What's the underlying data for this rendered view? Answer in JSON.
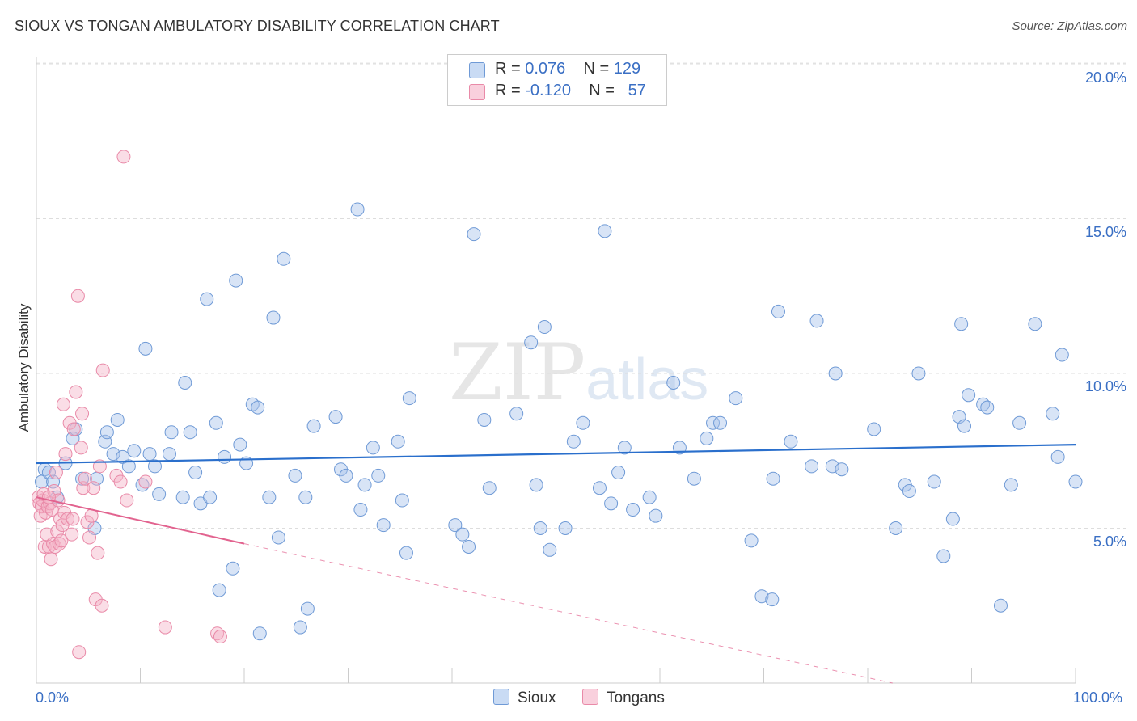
{
  "title": "SIOUX VS TONGAN AMBULATORY DISABILITY CORRELATION CHART",
  "source": "Source: ZipAtlas.com",
  "watermark": {
    "zip": "ZIP",
    "atlas": "atlas"
  },
  "legend_top": {
    "rows": [
      {
        "r_label": "R = ",
        "r_value": "0.076",
        "n_label": "N = ",
        "n_value": "129",
        "color": "#a9c4ec"
      },
      {
        "r_label": "R = ",
        "r_value": "-0.120",
        "n_label": "N = ",
        "n_value": "57",
        "color": "#f4b4c8"
      }
    ]
  },
  "legend_bottom": {
    "sioux": "Sioux",
    "tongans": "Tongans"
  },
  "axes": {
    "ylabel": "Ambulatory Disability",
    "x_min_label": "0.0%",
    "x_max_label": "100.0%",
    "y_ticks": [
      "5.0%",
      "10.0%",
      "15.0%",
      "20.0%"
    ]
  },
  "colors": {
    "sioux_fill": "#a9c4ec",
    "sioux_stroke": "#6f9ad6",
    "sioux_line": "#2a6fcc",
    "tongan_fill": "#f4b4c8",
    "tongan_stroke": "#e98aa8",
    "tongan_line": "#e2638f"
  },
  "chart_data": {
    "type": "scatter",
    "xlabel": "",
    "ylabel": "Ambulatory Disability",
    "xlim": [
      0,
      100
    ],
    "ylim": [
      0,
      20.7
    ],
    "grid": true,
    "series": [
      {
        "name": "Sioux",
        "trend": {
          "x0": 0,
          "y0": 7.1,
          "x1": 100,
          "y1": 7.7
        },
        "points": [
          [
            0.5,
            6.5
          ],
          [
            0.8,
            6.9
          ],
          [
            1.2,
            6.8
          ],
          [
            1.6,
            6.5
          ],
          [
            2.0,
            6.0
          ],
          [
            2.8,
            7.1
          ],
          [
            3.5,
            7.9
          ],
          [
            3.8,
            8.2
          ],
          [
            4.4,
            6.6
          ],
          [
            5.6,
            5.0
          ],
          [
            5.8,
            6.6
          ],
          [
            6.6,
            7.8
          ],
          [
            6.8,
            8.1
          ],
          [
            7.4,
            7.4
          ],
          [
            7.8,
            8.5
          ],
          [
            8.3,
            7.3
          ],
          [
            8.9,
            7.0
          ],
          [
            9.4,
            7.5
          ],
          [
            10.2,
            6.4
          ],
          [
            10.5,
            10.8
          ],
          [
            10.9,
            7.4
          ],
          [
            11.4,
            7.0
          ],
          [
            11.8,
            6.1
          ],
          [
            12.8,
            7.4
          ],
          [
            13.0,
            8.1
          ],
          [
            14.1,
            6.0
          ],
          [
            14.3,
            9.7
          ],
          [
            14.8,
            8.1
          ],
          [
            15.3,
            6.8
          ],
          [
            15.8,
            5.8
          ],
          [
            16.4,
            12.4
          ],
          [
            16.7,
            6.0
          ],
          [
            17.3,
            8.4
          ],
          [
            17.6,
            3.0
          ],
          [
            18.1,
            7.3
          ],
          [
            18.9,
            3.7
          ],
          [
            19.2,
            13.0
          ],
          [
            19.6,
            7.7
          ],
          [
            20.2,
            7.1
          ],
          [
            20.8,
            9.0
          ],
          [
            21.3,
            8.9
          ],
          [
            21.5,
            1.6
          ],
          [
            22.4,
            6.0
          ],
          [
            22.8,
            11.8
          ],
          [
            23.3,
            4.7
          ],
          [
            23.8,
            13.7
          ],
          [
            24.9,
            6.7
          ],
          [
            25.4,
            1.8
          ],
          [
            25.9,
            6.0
          ],
          [
            26.1,
            2.4
          ],
          [
            26.7,
            8.3
          ],
          [
            28.8,
            8.6
          ],
          [
            29.3,
            6.9
          ],
          [
            29.8,
            6.7
          ],
          [
            30.9,
            15.3
          ],
          [
            31.2,
            5.6
          ],
          [
            31.6,
            6.4
          ],
          [
            32.4,
            7.6
          ],
          [
            32.9,
            6.7
          ],
          [
            33.4,
            5.1
          ],
          [
            34.8,
            7.8
          ],
          [
            35.2,
            5.9
          ],
          [
            35.6,
            4.2
          ],
          [
            35.9,
            9.2
          ],
          [
            40.3,
            5.1
          ],
          [
            41.0,
            4.8
          ],
          [
            41.6,
            4.4
          ],
          [
            42.1,
            14.5
          ],
          [
            43.1,
            8.5
          ],
          [
            43.6,
            6.3
          ],
          [
            46.2,
            8.7
          ],
          [
            47.6,
            11.0
          ],
          [
            48.1,
            6.4
          ],
          [
            48.5,
            5.0
          ],
          [
            48.9,
            11.5
          ],
          [
            49.4,
            4.3
          ],
          [
            50.9,
            5.0
          ],
          [
            51.7,
            7.8
          ],
          [
            52.6,
            8.4
          ],
          [
            54.2,
            6.3
          ],
          [
            54.7,
            14.6
          ],
          [
            55.3,
            5.8
          ],
          [
            56.0,
            6.8
          ],
          [
            56.6,
            7.6
          ],
          [
            57.4,
            5.6
          ],
          [
            59.0,
            6.0
          ],
          [
            59.6,
            5.4
          ],
          [
            61.3,
            9.7
          ],
          [
            61.9,
            7.6
          ],
          [
            63.3,
            6.6
          ],
          [
            64.5,
            7.9
          ],
          [
            65.1,
            8.4
          ],
          [
            65.8,
            8.4
          ],
          [
            67.3,
            9.2
          ],
          [
            68.8,
            4.6
          ],
          [
            69.8,
            2.8
          ],
          [
            70.8,
            2.7
          ],
          [
            70.9,
            6.6
          ],
          [
            71.4,
            12.0
          ],
          [
            72.6,
            7.8
          ],
          [
            74.6,
            7.0
          ],
          [
            75.1,
            11.7
          ],
          [
            76.6,
            7.0
          ],
          [
            76.9,
            10.0
          ],
          [
            77.5,
            6.9
          ],
          [
            80.6,
            8.2
          ],
          [
            82.7,
            5.0
          ],
          [
            83.6,
            6.4
          ],
          [
            84.0,
            6.2
          ],
          [
            84.9,
            10.0
          ],
          [
            86.4,
            6.5
          ],
          [
            87.3,
            4.1
          ],
          [
            88.2,
            5.3
          ],
          [
            88.8,
            8.6
          ],
          [
            89.0,
            11.6
          ],
          [
            89.3,
            8.3
          ],
          [
            89.7,
            9.3
          ],
          [
            91.1,
            9.0
          ],
          [
            91.5,
            8.9
          ],
          [
            92.8,
            2.5
          ],
          [
            93.8,
            6.4
          ],
          [
            94.6,
            8.4
          ],
          [
            96.1,
            11.6
          ],
          [
            97.8,
            8.7
          ],
          [
            98.3,
            7.3
          ],
          [
            98.7,
            10.6
          ],
          [
            100.0,
            6.5
          ]
        ]
      },
      {
        "name": "Tongans",
        "trend": {
          "x0": 0,
          "y0": 6.0,
          "x1": 20,
          "y1": 4.5,
          "dashed_to": {
            "x": 100,
            "y": 0
          }
        },
        "points": [
          [
            0.2,
            6.0
          ],
          [
            0.3,
            5.8
          ],
          [
            0.4,
            5.4
          ],
          [
            0.5,
            5.7
          ],
          [
            0.6,
            5.9
          ],
          [
            0.7,
            6.1
          ],
          [
            0.8,
            4.4
          ],
          [
            0.9,
            5.5
          ],
          [
            1.0,
            4.8
          ],
          [
            1.1,
            5.7
          ],
          [
            1.2,
            4.4
          ],
          [
            1.3,
            5.8
          ],
          [
            1.4,
            4.0
          ],
          [
            1.5,
            5.6
          ],
          [
            1.6,
            4.5
          ],
          [
            1.7,
            6.2
          ],
          [
            1.8,
            4.4
          ],
          [
            1.9,
            6.8
          ],
          [
            2.0,
            4.9
          ],
          [
            2.1,
            5.9
          ],
          [
            2.2,
            4.5
          ],
          [
            2.3,
            5.3
          ],
          [
            2.4,
            4.6
          ],
          [
            2.5,
            5.1
          ],
          [
            2.6,
            9.0
          ],
          [
            2.7,
            5.5
          ],
          [
            2.8,
            7.4
          ],
          [
            3.0,
            5.3
          ],
          [
            3.2,
            8.4
          ],
          [
            3.4,
            4.8
          ],
          [
            3.5,
            5.3
          ],
          [
            3.6,
            8.2
          ],
          [
            3.8,
            9.4
          ],
          [
            4.0,
            12.5
          ],
          [
            4.1,
            1.0
          ],
          [
            4.3,
            7.6
          ],
          [
            4.4,
            8.7
          ],
          [
            4.5,
            6.3
          ],
          [
            4.7,
            6.6
          ],
          [
            4.9,
            5.2
          ],
          [
            5.1,
            4.7
          ],
          [
            5.3,
            5.4
          ],
          [
            5.5,
            6.3
          ],
          [
            5.7,
            2.7
          ],
          [
            5.9,
            4.2
          ],
          [
            6.1,
            7.0
          ],
          [
            6.3,
            2.5
          ],
          [
            6.4,
            10.1
          ],
          [
            7.7,
            6.7
          ],
          [
            8.1,
            6.5
          ],
          [
            8.4,
            17.0
          ],
          [
            8.7,
            5.9
          ],
          [
            10.5,
            6.5
          ],
          [
            12.4,
            1.8
          ],
          [
            17.4,
            1.6
          ],
          [
            17.7,
            1.5
          ],
          [
            1.2,
            6.0
          ]
        ]
      }
    ]
  }
}
